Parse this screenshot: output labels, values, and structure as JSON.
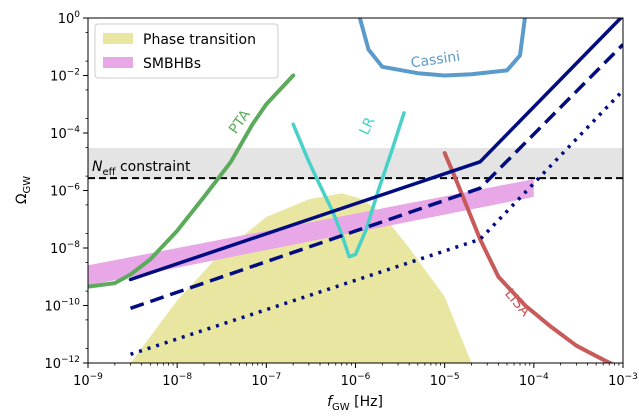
{
  "chart_data": {
    "type": "line",
    "xscale": "log",
    "yscale": "log",
    "xlim": [
      1e-09,
      0.001
    ],
    "ylim": [
      1e-12,
      1
    ],
    "xlabel": "f_GW [Hz]",
    "ylabel": "Ω_GW",
    "grid": false,
    "legend_position": "top-left",
    "x_ticks": [
      {
        "value": 1e-09,
        "base": "10",
        "exp": "−9"
      },
      {
        "value": 1e-08,
        "base": "10",
        "exp": "−8"
      },
      {
        "value": 1e-07,
        "base": "10",
        "exp": "−7"
      },
      {
        "value": 1e-06,
        "base": "10",
        "exp": "−6"
      },
      {
        "value": 1e-05,
        "base": "10",
        "exp": "−5"
      },
      {
        "value": 0.0001,
        "base": "10",
        "exp": "−4"
      },
      {
        "value": 0.001,
        "base": "10",
        "exp": "−3"
      }
    ],
    "y_ticks": [
      {
        "value": 1e-12,
        "base": "10",
        "exp": "−12"
      },
      {
        "value": 1e-10,
        "base": "10",
        "exp": "−10"
      },
      {
        "value": 1e-08,
        "base": "10",
        "exp": "−8"
      },
      {
        "value": 1e-06,
        "base": "10",
        "exp": "−6"
      },
      {
        "value": 0.0001,
        "base": "10",
        "exp": "−4"
      },
      {
        "value": 0.01,
        "base": "10",
        "exp": "−2"
      },
      {
        "value": 1,
        "base": "10",
        "exp": "0"
      }
    ],
    "legend": [
      {
        "label": "Phase transition",
        "color": "#e8e6a0"
      },
      {
        "label": "SMBHBs",
        "color": "#e8a8e8"
      }
    ],
    "bands": [
      {
        "name": "Phase transition",
        "color": "#e8e6a0",
        "upper": [
          [
            3e-09,
            1e-12
          ],
          [
            1e-08,
            1.5e-10
          ],
          [
            3e-08,
            6e-09
          ],
          [
            1e-07,
            1.2e-07
          ],
          [
            3e-07,
            5e-07
          ],
          [
            7e-07,
            8e-07
          ],
          [
            1.2e-06,
            5e-07
          ],
          [
            2e-06,
            1.5e-07
          ],
          [
            4e-06,
            1e-08
          ],
          [
            1e-05,
            2e-10
          ],
          [
            2e-05,
            1e-12
          ]
        ],
        "lower": [
          [
            2e-05,
            1e-12
          ],
          [
            1e-05,
            1e-12
          ],
          [
            3e-06,
            1e-12
          ],
          [
            1e-06,
            1e-12
          ],
          [
            3e-07,
            1e-12
          ],
          [
            1e-07,
            1e-12
          ],
          [
            3e-08,
            1e-12
          ],
          [
            1e-08,
            1e-12
          ],
          [
            3e-09,
            1e-12
          ]
        ]
      },
      {
        "name": "SMBHBs",
        "color": "#e8a8e8",
        "upper": [
          [
            1e-09,
            2.5e-09
          ],
          [
            0.0001,
            2.5e-06
          ]
        ],
        "lower": [
          [
            0.0001,
            6e-07
          ],
          [
            1e-09,
            5e-10
          ]
        ]
      }
    ],
    "n_eff_band": {
      "y_low": 2.5e-06,
      "y_high": 3e-05,
      "color": "#e4e4e4"
    },
    "n_eff_line": {
      "y": 2.7e-06,
      "label_main": "N",
      "label_sub": "eff",
      "label_rest": " constraint"
    },
    "series": [
      {
        "name": "PTA",
        "color": "#5cab5c",
        "width": 4,
        "dash": "",
        "points": [
          [
            1e-09,
            4.5e-10
          ],
          [
            2e-09,
            6e-10
          ],
          [
            3e-09,
            1.2e-09
          ],
          [
            5e-09,
            4e-09
          ],
          [
            1e-08,
            4e-08
          ],
          [
            2e-08,
            6e-07
          ],
          [
            4e-08,
            1e-05
          ],
          [
            7e-08,
            0.0002
          ],
          [
            1e-07,
            0.001
          ],
          [
            2e-07,
            0.01
          ]
        ]
      },
      {
        "name": "LR",
        "color": "#48d1c8",
        "width": 3.5,
        "dash": "",
        "points": [
          [
            2e-07,
            0.0002
          ],
          [
            3e-07,
            1e-05
          ],
          [
            4e-07,
            1.5e-06
          ],
          [
            5.5e-07,
            2e-07
          ],
          [
            7e-07,
            3e-08
          ],
          [
            8.5e-07,
            5e-09
          ],
          [
            1e-06,
            6e-09
          ],
          [
            1.3e-06,
            4e-08
          ],
          [
            1.8e-06,
            1e-06
          ],
          [
            2.5e-06,
            2e-05
          ],
          [
            3.5e-06,
            0.0005
          ]
        ]
      },
      {
        "name": "Cassini",
        "color": "#5b9bcc",
        "width": 4,
        "dash": "",
        "points": [
          [
            1.1e-06,
            1.2
          ],
          [
            1.4e-06,
            0.08
          ],
          [
            2e-06,
            0.02
          ],
          [
            5e-06,
            0.012
          ],
          [
            1e-05,
            0.01
          ],
          [
            2e-05,
            0.011
          ],
          [
            5e-05,
            0.015
          ],
          [
            7e-05,
            0.05
          ],
          [
            8e-05,
            1.2
          ]
        ]
      },
      {
        "name": "LISA",
        "color": "#c85a5a",
        "width": 4,
        "dash": "",
        "points": [
          [
            1e-05,
            2e-05
          ],
          [
            1.3e-05,
            3e-06
          ],
          [
            1.8e-05,
            2.5e-07
          ],
          [
            2.5e-05,
            2e-08
          ],
          [
            4e-05,
            1e-09
          ],
          [
            8e-05,
            1e-10
          ],
          [
            0.00015,
            2e-11
          ],
          [
            0.0003,
            4e-12
          ],
          [
            0.0006,
            1.3e-12
          ],
          [
            0.001,
            6e-13
          ]
        ]
      },
      {
        "name": "",
        "color": "#000c80",
        "width": 3.5,
        "dash": "",
        "points": [
          [
            3e-09,
            8e-10
          ],
          [
            2.5e-05,
            1e-05
          ],
          [
            0.001,
            1.2
          ]
        ]
      },
      {
        "name": "",
        "color": "#000c80",
        "width": 3.5,
        "dash": "14,7",
        "points": [
          [
            3e-09,
            8e-11
          ],
          [
            2.5e-05,
            1.2e-06
          ],
          [
            0.001,
            0.12
          ]
        ]
      },
      {
        "name": "",
        "color": "#000c80",
        "width": 3.5,
        "dash": "3,6",
        "points": [
          [
            3e-09,
            2e-12
          ],
          [
            2.5e-05,
            2e-08
          ],
          [
            0.001,
            0.003
          ]
        ]
      }
    ],
    "curve_labels": [
      {
        "text": "Cassini",
        "x": 8e-06,
        "y": 0.025,
        "rotate": -8,
        "color": "#5b9bcc"
      },
      {
        "text": "PTA",
        "x": 5.5e-08,
        "y": 0.0002,
        "rotate": -55,
        "color": "#5cab5c"
      },
      {
        "text": "LR",
        "x": 1.5e-06,
        "y": 0.00015,
        "rotate": -65,
        "color": "#48d1c8"
      },
      {
        "text": "LISA",
        "x": 6e-05,
        "y": 1e-10,
        "rotate": 50,
        "color": "#c85a5a"
      }
    ]
  }
}
